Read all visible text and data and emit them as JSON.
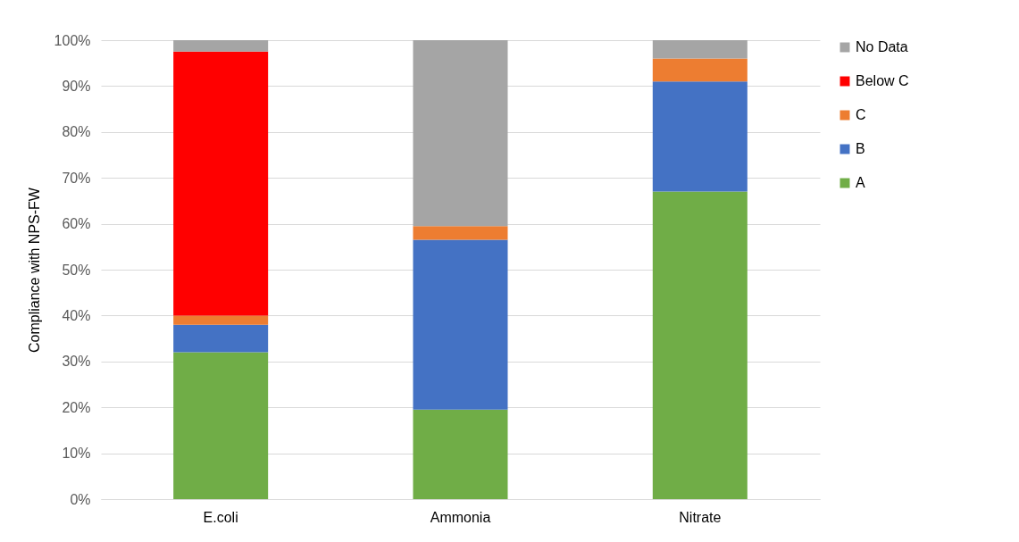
{
  "chart_data": {
    "type": "bar",
    "stacked": true,
    "ylabel": "Compliance with NPS-FW",
    "categories": [
      "E.coli",
      "Ammonia",
      "Nitrate"
    ],
    "series": [
      {
        "name": "A",
        "color": "#70ad47",
        "values": [
          32,
          19.5,
          67
        ]
      },
      {
        "name": "B",
        "color": "#4472c4",
        "values": [
          6,
          37,
          24
        ]
      },
      {
        "name": "C",
        "color": "#ed7d31",
        "values": [
          2,
          3,
          5
        ]
      },
      {
        "name": "Below C",
        "color": "#ff0000",
        "values": [
          57.5,
          0,
          0
        ]
      },
      {
        "name": "No Data",
        "color": "#a5a5a5",
        "values": [
          2.5,
          40.5,
          4
        ]
      }
    ],
    "ylim": [
      0,
      100
    ],
    "yticks": [
      {
        "value": 0,
        "label": "0%"
      },
      {
        "value": 10,
        "label": "10%"
      },
      {
        "value": 20,
        "label": "20%"
      },
      {
        "value": 30,
        "label": "30%"
      },
      {
        "value": 40,
        "label": "40%"
      },
      {
        "value": 50,
        "label": "50%"
      },
      {
        "value": 60,
        "label": "60%"
      },
      {
        "value": 70,
        "label": "70%"
      },
      {
        "value": 80,
        "label": "80%"
      },
      {
        "value": 90,
        "label": "90%"
      },
      {
        "value": 100,
        "label": "100%"
      }
    ],
    "grid": "y",
    "legend": "right"
  }
}
